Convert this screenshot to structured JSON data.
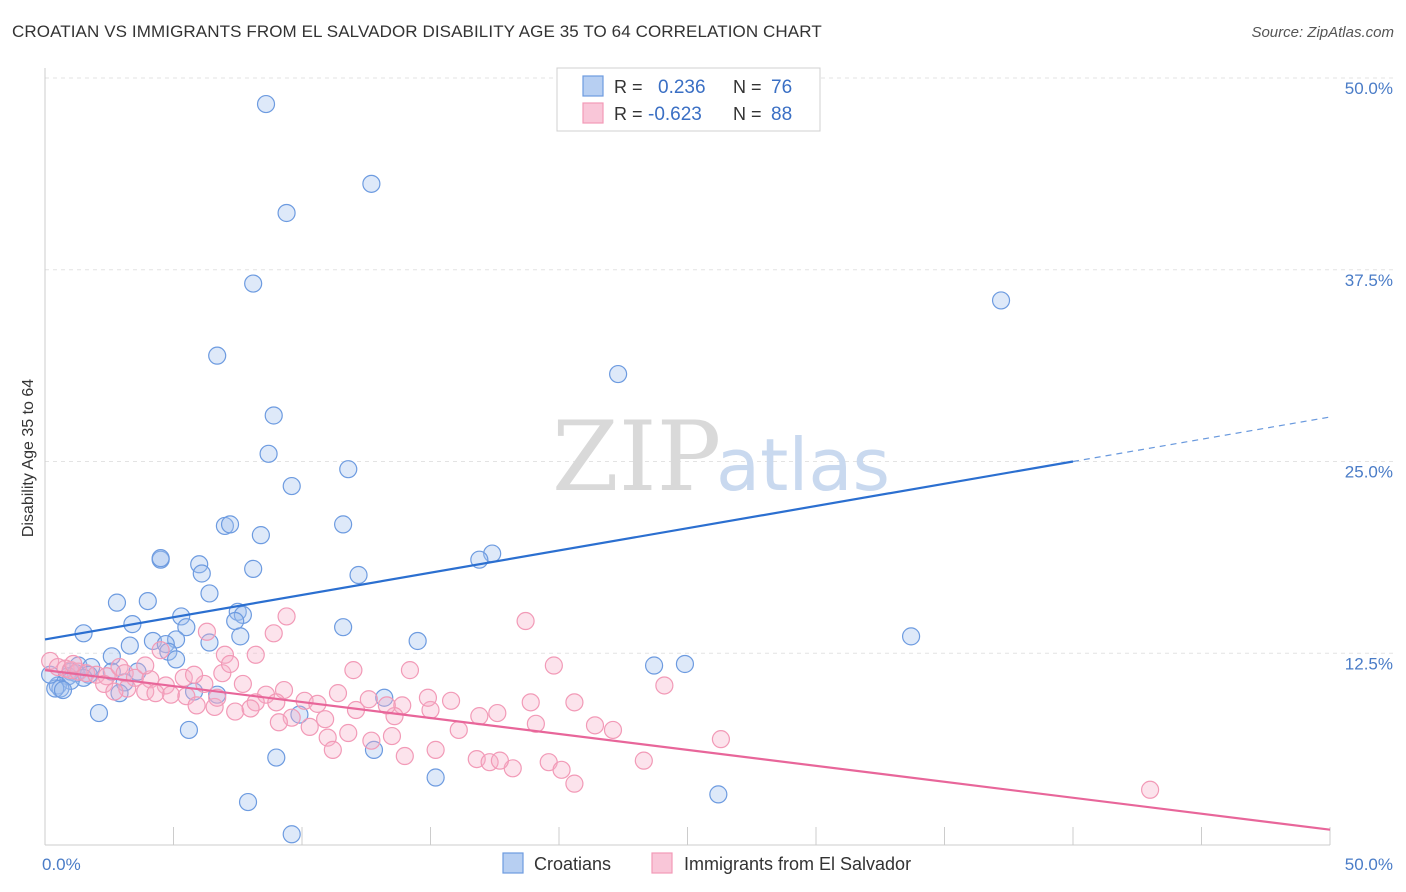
{
  "title": "CROATIAN VS IMMIGRANTS FROM EL SALVADOR DISABILITY AGE 35 TO 64 CORRELATION CHART",
  "source": "Source: ZipAtlas.com",
  "colors": {
    "croatians": "#6d9be0",
    "salvador": "#f29ab7",
    "croatians_line": "#2b6fd0",
    "salvador_line": "#e8669a",
    "axis_label": "#4a7cc7"
  },
  "legend_top": [
    {
      "r_label": "R =",
      "r_value": "0.236",
      "n_label": "N =",
      "n_value": "76"
    },
    {
      "r_label": "R =",
      "r_value": "-0.623",
      "n_label": "N =",
      "n_value": "88"
    }
  ],
  "legend_bottom": [
    "Croatians",
    "Immigrants from El Salvador"
  ],
  "watermark": {
    "zip": "ZIP",
    "atlas": "atlas"
  },
  "chart_data": {
    "type": "scatter",
    "xlabel": "",
    "ylabel": "Disability Age 35 to 64",
    "xlim": [
      0,
      50
    ],
    "ylim": [
      0,
      50
    ],
    "x_tick_labels": [
      "0.0%",
      "50.0%"
    ],
    "y_ticks": [
      12.5,
      25.0,
      37.5,
      50.0
    ],
    "y_tick_labels": [
      "12.5%",
      "25.0%",
      "37.5%",
      "50.0%"
    ],
    "grid": true,
    "series": [
      {
        "name": "Croatians",
        "r": 0.236,
        "n": 76,
        "trend": {
          "x0": 0,
          "y0": 13.4,
          "x1": 40,
          "y1": 25.0,
          "x_dash_end": 50,
          "y_dash_end": 27.9
        },
        "points": [
          [
            8.6,
            48.3
          ],
          [
            12.7,
            43.1
          ],
          [
            9.4,
            41.2
          ],
          [
            8.1,
            36.6
          ],
          [
            37.2,
            35.5
          ],
          [
            6.7,
            31.9
          ],
          [
            22.3,
            30.7
          ],
          [
            8.9,
            28.0
          ],
          [
            8.7,
            25.5
          ],
          [
            11.8,
            24.5
          ],
          [
            9.6,
            23.4
          ],
          [
            7.0,
            20.8
          ],
          [
            7.2,
            20.9
          ],
          [
            8.4,
            20.2
          ],
          [
            11.6,
            20.9
          ],
          [
            17.4,
            19.0
          ],
          [
            16.9,
            18.6
          ],
          [
            4.5,
            18.6
          ],
          [
            4.5,
            18.7
          ],
          [
            6.0,
            18.3
          ],
          [
            8.1,
            18.0
          ],
          [
            6.1,
            17.7
          ],
          [
            12.2,
            17.6
          ],
          [
            6.4,
            16.4
          ],
          [
            2.8,
            15.8
          ],
          [
            4.0,
            15.9
          ],
          [
            7.5,
            15.2
          ],
          [
            5.3,
            14.9
          ],
          [
            7.7,
            15.0
          ],
          [
            7.4,
            14.6
          ],
          [
            3.4,
            14.4
          ],
          [
            5.5,
            14.2
          ],
          [
            11.6,
            14.2
          ],
          [
            1.5,
            13.8
          ],
          [
            7.6,
            13.6
          ],
          [
            5.1,
            13.4
          ],
          [
            4.2,
            13.3
          ],
          [
            14.5,
            13.3
          ],
          [
            6.4,
            13.2
          ],
          [
            4.7,
            13.1
          ],
          [
            3.3,
            13.0
          ],
          [
            33.7,
            13.6
          ],
          [
            2.6,
            12.3
          ],
          [
            4.8,
            12.6
          ],
          [
            5.1,
            12.1
          ],
          [
            23.7,
            11.7
          ],
          [
            24.9,
            11.8
          ],
          [
            1.3,
            11.7
          ],
          [
            1.8,
            11.6
          ],
          [
            2.6,
            11.3
          ],
          [
            3.6,
            11.3
          ],
          [
            1.0,
            11.3
          ],
          [
            1.2,
            11.2
          ],
          [
            1.7,
            11.1
          ],
          [
            0.9,
            11.0
          ],
          [
            1.5,
            10.9
          ],
          [
            1.0,
            10.7
          ],
          [
            0.5,
            10.4
          ],
          [
            0.6,
            10.2
          ],
          [
            0.4,
            10.2
          ],
          [
            0.7,
            10.1
          ],
          [
            3.1,
            10.6
          ],
          [
            2.9,
            9.9
          ],
          [
            5.8,
            10.0
          ],
          [
            6.7,
            9.8
          ],
          [
            13.2,
            9.6
          ],
          [
            2.1,
            8.6
          ],
          [
            9.9,
            8.5
          ],
          [
            5.6,
            7.5
          ],
          [
            12.8,
            6.2
          ],
          [
            9.0,
            5.7
          ],
          [
            15.2,
            4.4
          ],
          [
            26.2,
            3.3
          ],
          [
            7.9,
            2.8
          ],
          [
            9.6,
            0.7
          ],
          [
            0.2,
            11.1
          ]
        ]
      },
      {
        "name": "Immigrants from El Salvador",
        "r": -0.623,
        "n": 88,
        "trend": {
          "x0": 0,
          "y0": 11.4,
          "x1": 50,
          "y1": 1.0
        },
        "points": [
          [
            0.2,
            12.0
          ],
          [
            0.5,
            11.6
          ],
          [
            0.8,
            11.5
          ],
          [
            1.0,
            11.4
          ],
          [
            1.3,
            11.3
          ],
          [
            1.6,
            11.2
          ],
          [
            2.0,
            11.1
          ],
          [
            2.4,
            11.0
          ],
          [
            2.9,
            11.6
          ],
          [
            3.1,
            11.2
          ],
          [
            1.1,
            11.8
          ],
          [
            3.5,
            10.9
          ],
          [
            4.1,
            10.8
          ],
          [
            4.7,
            10.4
          ],
          [
            5.4,
            10.9
          ],
          [
            6.2,
            10.5
          ],
          [
            6.9,
            11.2
          ],
          [
            7.7,
            10.5
          ],
          [
            8.6,
            9.8
          ],
          [
            9.3,
            10.1
          ],
          [
            10.1,
            9.4
          ],
          [
            11.4,
            9.9
          ],
          [
            12.6,
            9.5
          ],
          [
            13.9,
            9.1
          ],
          [
            15.0,
            8.8
          ],
          [
            15.8,
            9.4
          ],
          [
            16.9,
            8.4
          ],
          [
            17.6,
            8.6
          ],
          [
            19.1,
            7.9
          ],
          [
            20.6,
            9.3
          ],
          [
            21.4,
            7.8
          ],
          [
            3.9,
            10.0
          ],
          [
            4.9,
            9.8
          ],
          [
            5.5,
            9.7
          ],
          [
            6.6,
            9.0
          ],
          [
            7.4,
            8.7
          ],
          [
            8.2,
            9.3
          ],
          [
            9.0,
            9.3
          ],
          [
            9.6,
            8.3
          ],
          [
            10.3,
            7.7
          ],
          [
            11.0,
            7.0
          ],
          [
            11.8,
            7.3
          ],
          [
            12.7,
            6.8
          ],
          [
            13.5,
            7.1
          ],
          [
            14.0,
            5.8
          ],
          [
            15.2,
            6.2
          ],
          [
            16.1,
            7.5
          ],
          [
            16.8,
            5.6
          ],
          [
            17.3,
            5.4
          ],
          [
            18.2,
            5.0
          ],
          [
            19.6,
            5.4
          ],
          [
            20.1,
            4.9
          ],
          [
            20.6,
            4.0
          ],
          [
            23.3,
            5.5
          ],
          [
            26.3,
            6.9
          ],
          [
            43.0,
            3.6
          ],
          [
            18.7,
            14.6
          ],
          [
            9.4,
            14.9
          ],
          [
            6.3,
            13.9
          ],
          [
            8.9,
            13.8
          ],
          [
            7.0,
            12.4
          ],
          [
            4.5,
            12.7
          ],
          [
            7.2,
            11.8
          ],
          [
            3.9,
            11.7
          ],
          [
            12.0,
            11.4
          ],
          [
            14.2,
            11.4
          ],
          [
            19.8,
            11.7
          ],
          [
            24.1,
            10.4
          ],
          [
            8.2,
            12.4
          ],
          [
            5.8,
            11.1
          ],
          [
            2.3,
            10.5
          ],
          [
            3.2,
            10.2
          ],
          [
            4.3,
            9.9
          ],
          [
            5.9,
            9.1
          ],
          [
            6.7,
            9.6
          ],
          [
            8.0,
            8.9
          ],
          [
            9.1,
            8.0
          ],
          [
            10.9,
            8.2
          ],
          [
            12.1,
            8.8
          ],
          [
            13.6,
            8.4
          ],
          [
            14.9,
            9.6
          ],
          [
            18.9,
            9.3
          ],
          [
            22.1,
            7.5
          ],
          [
            11.2,
            6.2
          ],
          [
            17.7,
            5.5
          ],
          [
            13.3,
            9.1
          ],
          [
            10.6,
            9.2
          ],
          [
            2.7,
            10.0
          ]
        ]
      }
    ]
  }
}
